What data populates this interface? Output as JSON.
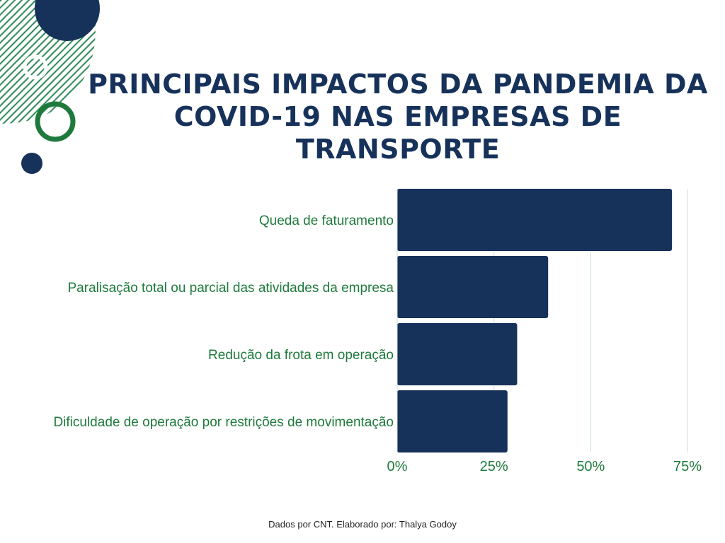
{
  "title": {
    "line1": "PRINCIPAIS IMPACTOS DA PANDEMIA DA",
    "line2": "COVID-19 NAS EMPRESAS DE TRANSPORTE"
  },
  "source": "Dados por CNT. Elaborado por: Thalya Godoy",
  "colors": {
    "bar": "#17325a",
    "label": "#1e7a3c",
    "grid": "#c9dcd7",
    "title": "#17325a",
    "accent_green": "#1e7a3c"
  },
  "chart_data": {
    "type": "bar",
    "orientation": "horizontal",
    "categories": [
      "Queda de faturamento",
      "Paralisação total ou parcial das atividades da empresa",
      "Redução da frota em operação",
      "Dificuldade de operação por restrições de movimentação"
    ],
    "values": [
      71,
      39,
      31,
      28.5
    ],
    "xlim": [
      0,
      75
    ],
    "xticks": [
      0,
      25,
      50,
      75
    ],
    "xtick_labels": [
      "0%",
      "25%",
      "50%",
      "75%"
    ],
    "grid": true,
    "title": "",
    "xlabel": "",
    "ylabel": ""
  }
}
